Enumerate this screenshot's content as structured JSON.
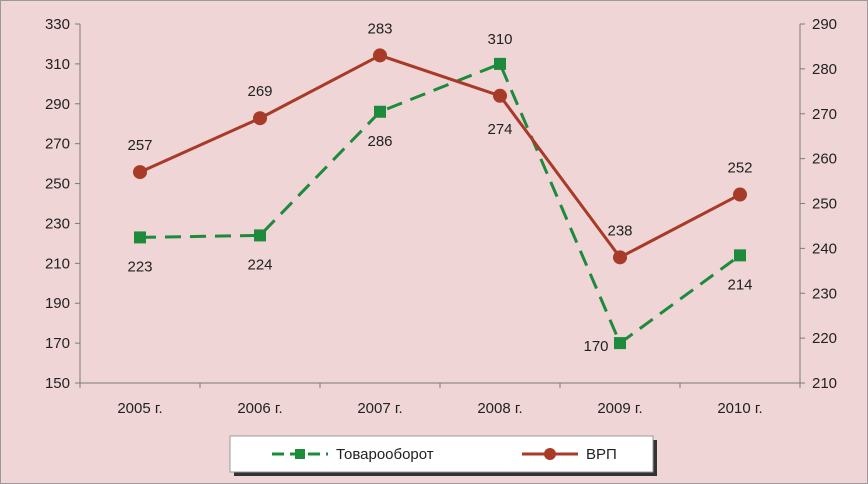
{
  "chart_data": {
    "type": "line",
    "categories": [
      "2005 г.",
      "2006 г.",
      "2007 г.",
      "2008 г.",
      "2009 г.",
      "2010 г."
    ],
    "series": [
      {
        "name": "Товарооборот",
        "axis": "left",
        "values": [
          223,
          224,
          286,
          310,
          170,
          214
        ],
        "color": "#1e8a3c",
        "line_style": "dashed",
        "marker": "square"
      },
      {
        "name": "ВРП",
        "axis": "right",
        "values": [
          257,
          269,
          283,
          274,
          238,
          252
        ],
        "color": "#a83a28",
        "line_style": "solid",
        "marker": "circle"
      }
    ],
    "y_left": {
      "range": [
        150,
        330
      ],
      "ticks": [
        150,
        170,
        190,
        210,
        230,
        250,
        270,
        290,
        310,
        330
      ]
    },
    "y_right": {
      "range": [
        210,
        290
      ],
      "ticks": [
        210,
        220,
        230,
        240,
        250,
        260,
        270,
        280,
        290
      ]
    },
    "grid": false,
    "legend_position": "bottom-center",
    "background_color": "#efd5d6"
  }
}
